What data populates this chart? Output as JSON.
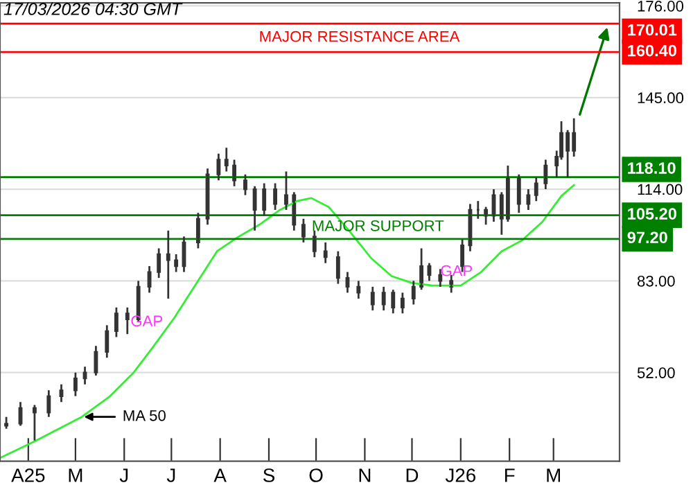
{
  "chart_data": {
    "type": "candlestick",
    "x": [
      "2025-03-18",
      "2025-03-27",
      "2025-04-05",
      "2025-04-14",
      "2025-04-22",
      "2025-05-01",
      "2025-05-07",
      "2025-05-14",
      "2025-05-21",
      "2025-05-27",
      "2025-06-03",
      "2025-06-10",
      "2025-06-17",
      "2025-06-23",
      "2025-06-29",
      "2025-07-04",
      "2025-07-09",
      "2025-07-18",
      "2025-07-24",
      "2025-07-31",
      "2025-08-05",
      "2025-08-10",
      "2025-08-17",
      "2025-08-23",
      "2025-08-29",
      "2025-09-05",
      "2025-09-12",
      "2025-09-17",
      "2025-09-23",
      "2025-09-30",
      "2025-10-07",
      "2025-10-15",
      "2025-10-21",
      "2025-10-28",
      "2025-11-06",
      "2025-11-13",
      "2025-11-19",
      "2025-11-25",
      "2025-12-02",
      "2025-12-07",
      "2025-12-12",
      "2025-12-19",
      "2025-12-26",
      "2026-01-02",
      "2026-01-07",
      "2026-01-12",
      "2026-01-17",
      "2026-01-22",
      "2026-01-27",
      "2026-01-31",
      "2026-02-07",
      "2026-02-13",
      "2026-02-18",
      "2026-02-24",
      "2026-03-03",
      "2026-03-06",
      "2026-03-10",
      "2026-03-14"
    ],
    "ohlc": [
      [
        34,
        37,
        33,
        34.7
      ],
      [
        34.7,
        42,
        34,
        40
      ],
      [
        40,
        41,
        29,
        38.5
      ],
      [
        38.5,
        46,
        37,
        44
      ],
      [
        44,
        48,
        42,
        46
      ],
      [
        46,
        52,
        44,
        50
      ],
      [
        50,
        54,
        48,
        52
      ],
      [
        52,
        61,
        51,
        59
      ],
      [
        59,
        68,
        57,
        66
      ],
      [
        66,
        74,
        64,
        72
      ],
      [
        72,
        74,
        65,
        70
      ],
      [
        70,
        83,
        69,
        81
      ],
      [
        81,
        88,
        79,
        86
      ],
      [
        86,
        94,
        84,
        92
      ],
      [
        92,
        100,
        77,
        90
      ],
      [
        90,
        92,
        86,
        88
      ],
      [
        88,
        98,
        86,
        96
      ],
      [
        96,
        106,
        94,
        104
      ],
      [
        104,
        121,
        102,
        119
      ],
      [
        119,
        126,
        117,
        124
      ],
      [
        124,
        128,
        120,
        122
      ],
      [
        122,
        124,
        115,
        117
      ],
      [
        117,
        119,
        112,
        114
      ],
      [
        114,
        115,
        100,
        107
      ],
      [
        107,
        116,
        105,
        114
      ],
      [
        114,
        116,
        107,
        109
      ],
      [
        109,
        120,
        107,
        112
      ],
      [
        112,
        113,
        100,
        102
      ],
      [
        102,
        104,
        96,
        98
      ],
      [
        98,
        100,
        91,
        93
      ],
      [
        93,
        96,
        89,
        91
      ],
      [
        91,
        93,
        82,
        84
      ],
      [
        84,
        86,
        79,
        81
      ],
      [
        81,
        83,
        77,
        79
      ],
      [
        79,
        81,
        73,
        75
      ],
      [
        75,
        81,
        73,
        79
      ],
      [
        79,
        80,
        72,
        74
      ],
      [
        74,
        79,
        72,
        77
      ],
      [
        77,
        83,
        75,
        81
      ],
      [
        81,
        94,
        80,
        88
      ],
      [
        88,
        89,
        83,
        85
      ],
      [
        85,
        87,
        81,
        83
      ],
      [
        83,
        85,
        79,
        81
      ],
      [
        88,
        97,
        86,
        95
      ],
      [
        95,
        109,
        93,
        107
      ],
      [
        107,
        110,
        104,
        107
      ],
      [
        107,
        108,
        102,
        105
      ],
      [
        105,
        114,
        103,
        112
      ],
      [
        112,
        113,
        98.6,
        104
      ],
      [
        104,
        122,
        103,
        118
      ],
      [
        118,
        119,
        106,
        109
      ],
      [
        109,
        114,
        107,
        112
      ],
      [
        112,
        118,
        110,
        116
      ],
      [
        116,
        124,
        114,
        122
      ],
      [
        122,
        127,
        118,
        125
      ],
      [
        125,
        137,
        124,
        133
      ],
      [
        133,
        134,
        118,
        127
      ],
      [
        127,
        138,
        125,
        133
      ]
    ],
    "color": "#333333",
    "series": [
      {
        "type": "line",
        "color": "#33ee33",
        "x": [
          "2025-03-14",
          "2025-04-05",
          "2025-05-05",
          "2025-05-23",
          "2025-06-07",
          "2025-06-19",
          "2025-07-03",
          "2025-07-16",
          "2025-07-30",
          "2025-08-12",
          "2025-08-26",
          "2025-09-08",
          "2025-09-19",
          "2025-09-28",
          "2025-10-09",
          "2025-10-22",
          "2025-11-05",
          "2025-11-18",
          "2025-12-01",
          "2025-12-14",
          "2026-01-01",
          "2026-01-14",
          "2026-01-27",
          "2026-02-09",
          "2026-02-22",
          "2026-03-06",
          "2026-03-14"
        ],
        "values": [
          23.1,
          28.7,
          37,
          44,
          52,
          60.4,
          70.6,
          81.4,
          93,
          97.7,
          102,
          107,
          110,
          111,
          108,
          100,
          90.7,
          84.6,
          82.3,
          81.4,
          81.4,
          86,
          93,
          96.7,
          103,
          111.7,
          115.4
        ]
      }
    ],
    "xlim": [
      "2025-03-14",
      "2026-04-12"
    ],
    "xticks": [
      {
        "value": "2025-04-01",
        "label": "A25"
      },
      {
        "value": "2025-05-01",
        "label": "M"
      },
      {
        "value": "2025-06-01",
        "label": "J"
      },
      {
        "value": "2025-07-01",
        "label": "J"
      },
      {
        "value": "2025-08-01",
        "label": "A"
      },
      {
        "value": "2025-09-01",
        "label": "S"
      },
      {
        "value": "2025-10-01",
        "label": "O"
      },
      {
        "value": "2025-11-01",
        "label": "N"
      },
      {
        "value": "2025-12-01",
        "label": "D"
      },
      {
        "value": "2026-01-01",
        "label": "J26"
      },
      {
        "value": "2026-02-01",
        "label": "F"
      },
      {
        "value": "2026-03-01",
        "label": "M"
      }
    ],
    "ylim": [
      22,
      177
    ],
    "yticks": [
      {
        "value": 52,
        "label": "52.00"
      },
      {
        "value": 83,
        "label": "83.00"
      },
      {
        "value": 114,
        "label": "114.00"
      },
      {
        "value": 145,
        "label": "145.00"
      },
      {
        "value": 176,
        "label": "176.00"
      }
    ],
    "grid": "y",
    "ref_lines": [
      {
        "axis": "y",
        "value": 170.01,
        "label": "170.01",
        "color": "#ff0000"
      },
      {
        "axis": "y",
        "value": 160.4,
        "label": "160.40",
        "color": "#ff0000"
      },
      {
        "axis": "y",
        "value": 118.1,
        "label": "118.10",
        "color": "#008000"
      },
      {
        "axis": "y",
        "value": 105.2,
        "label": "105.20",
        "color": "#008000"
      },
      {
        "axis": "y",
        "value": 97.2,
        "label": "97.20",
        "color": "#008000"
      }
    ],
    "annotations": [
      "17/03/2026 04:30 GMT",
      "MAJOR RESISTANCE AREA",
      "MAJOR SUPPORT",
      {
        "text": "GAP",
        "x": "2025-06-05",
        "y": 69
      },
      {
        "text": "GAP",
        "x": "2025-12-19",
        "y": 86
      },
      {
        "text": "MA 50",
        "x": "2025-05-04",
        "y": 37
      }
    ]
  }
}
